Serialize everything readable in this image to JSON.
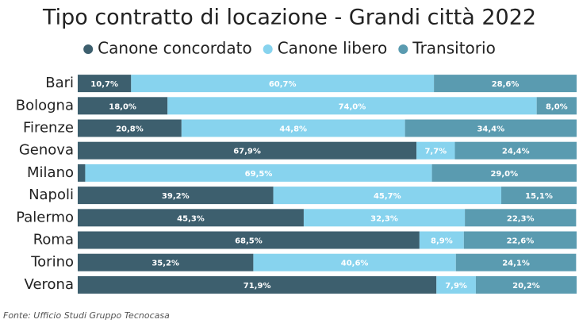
{
  "chart_data": {
    "type": "stacked_bar_horizontal",
    "title": "Tipo contratto di locazione - Grandi città 2022",
    "source": "Fonte: Ufficio Studi Gruppo Tecnocasa",
    "categories": [
      "Bari",
      "Bologna",
      "Firenze",
      "Genova",
      "Milano",
      "Napoli",
      "Palermo",
      "Roma",
      "Torino",
      "Verona"
    ],
    "xlim": [
      0,
      100
    ],
    "series": [
      {
        "name": "Canone concordato",
        "color": "#3d5f6e",
        "values": [
          10.7,
          18.0,
          20.8,
          67.9,
          1.5,
          39.2,
          45.3,
          68.5,
          35.2,
          71.9
        ],
        "value_labels": [
          "10,7%",
          "18,0%",
          "20,8%",
          "67,9%",
          null,
          "39,2%",
          "45,3%",
          "68,5%",
          "35,2%",
          "71,9%"
        ]
      },
      {
        "name": "Canone libero",
        "color": "#87d3ee",
        "values": [
          60.7,
          74.0,
          44.8,
          7.7,
          69.5,
          45.7,
          32.3,
          8.9,
          40.6,
          7.9
        ],
        "value_labels": [
          "60,7%",
          "74,0%",
          "44,8%",
          "7,7%",
          "69,5%",
          "45,7%",
          "32,3%",
          "8,9%",
          "40,6%",
          "7,9%"
        ]
      },
      {
        "name": "Transitorio",
        "color": "#5a9bb0",
        "values": [
          28.6,
          8.0,
          34.4,
          24.4,
          29.0,
          15.1,
          22.3,
          22.6,
          24.1,
          20.2
        ],
        "value_labels": [
          "28,6%",
          "8,0%",
          "34,4%",
          "24,4%",
          "29,0%",
          "15,1%",
          "22,3%",
          "22,6%",
          "24,1%",
          "20,2%"
        ]
      }
    ]
  }
}
